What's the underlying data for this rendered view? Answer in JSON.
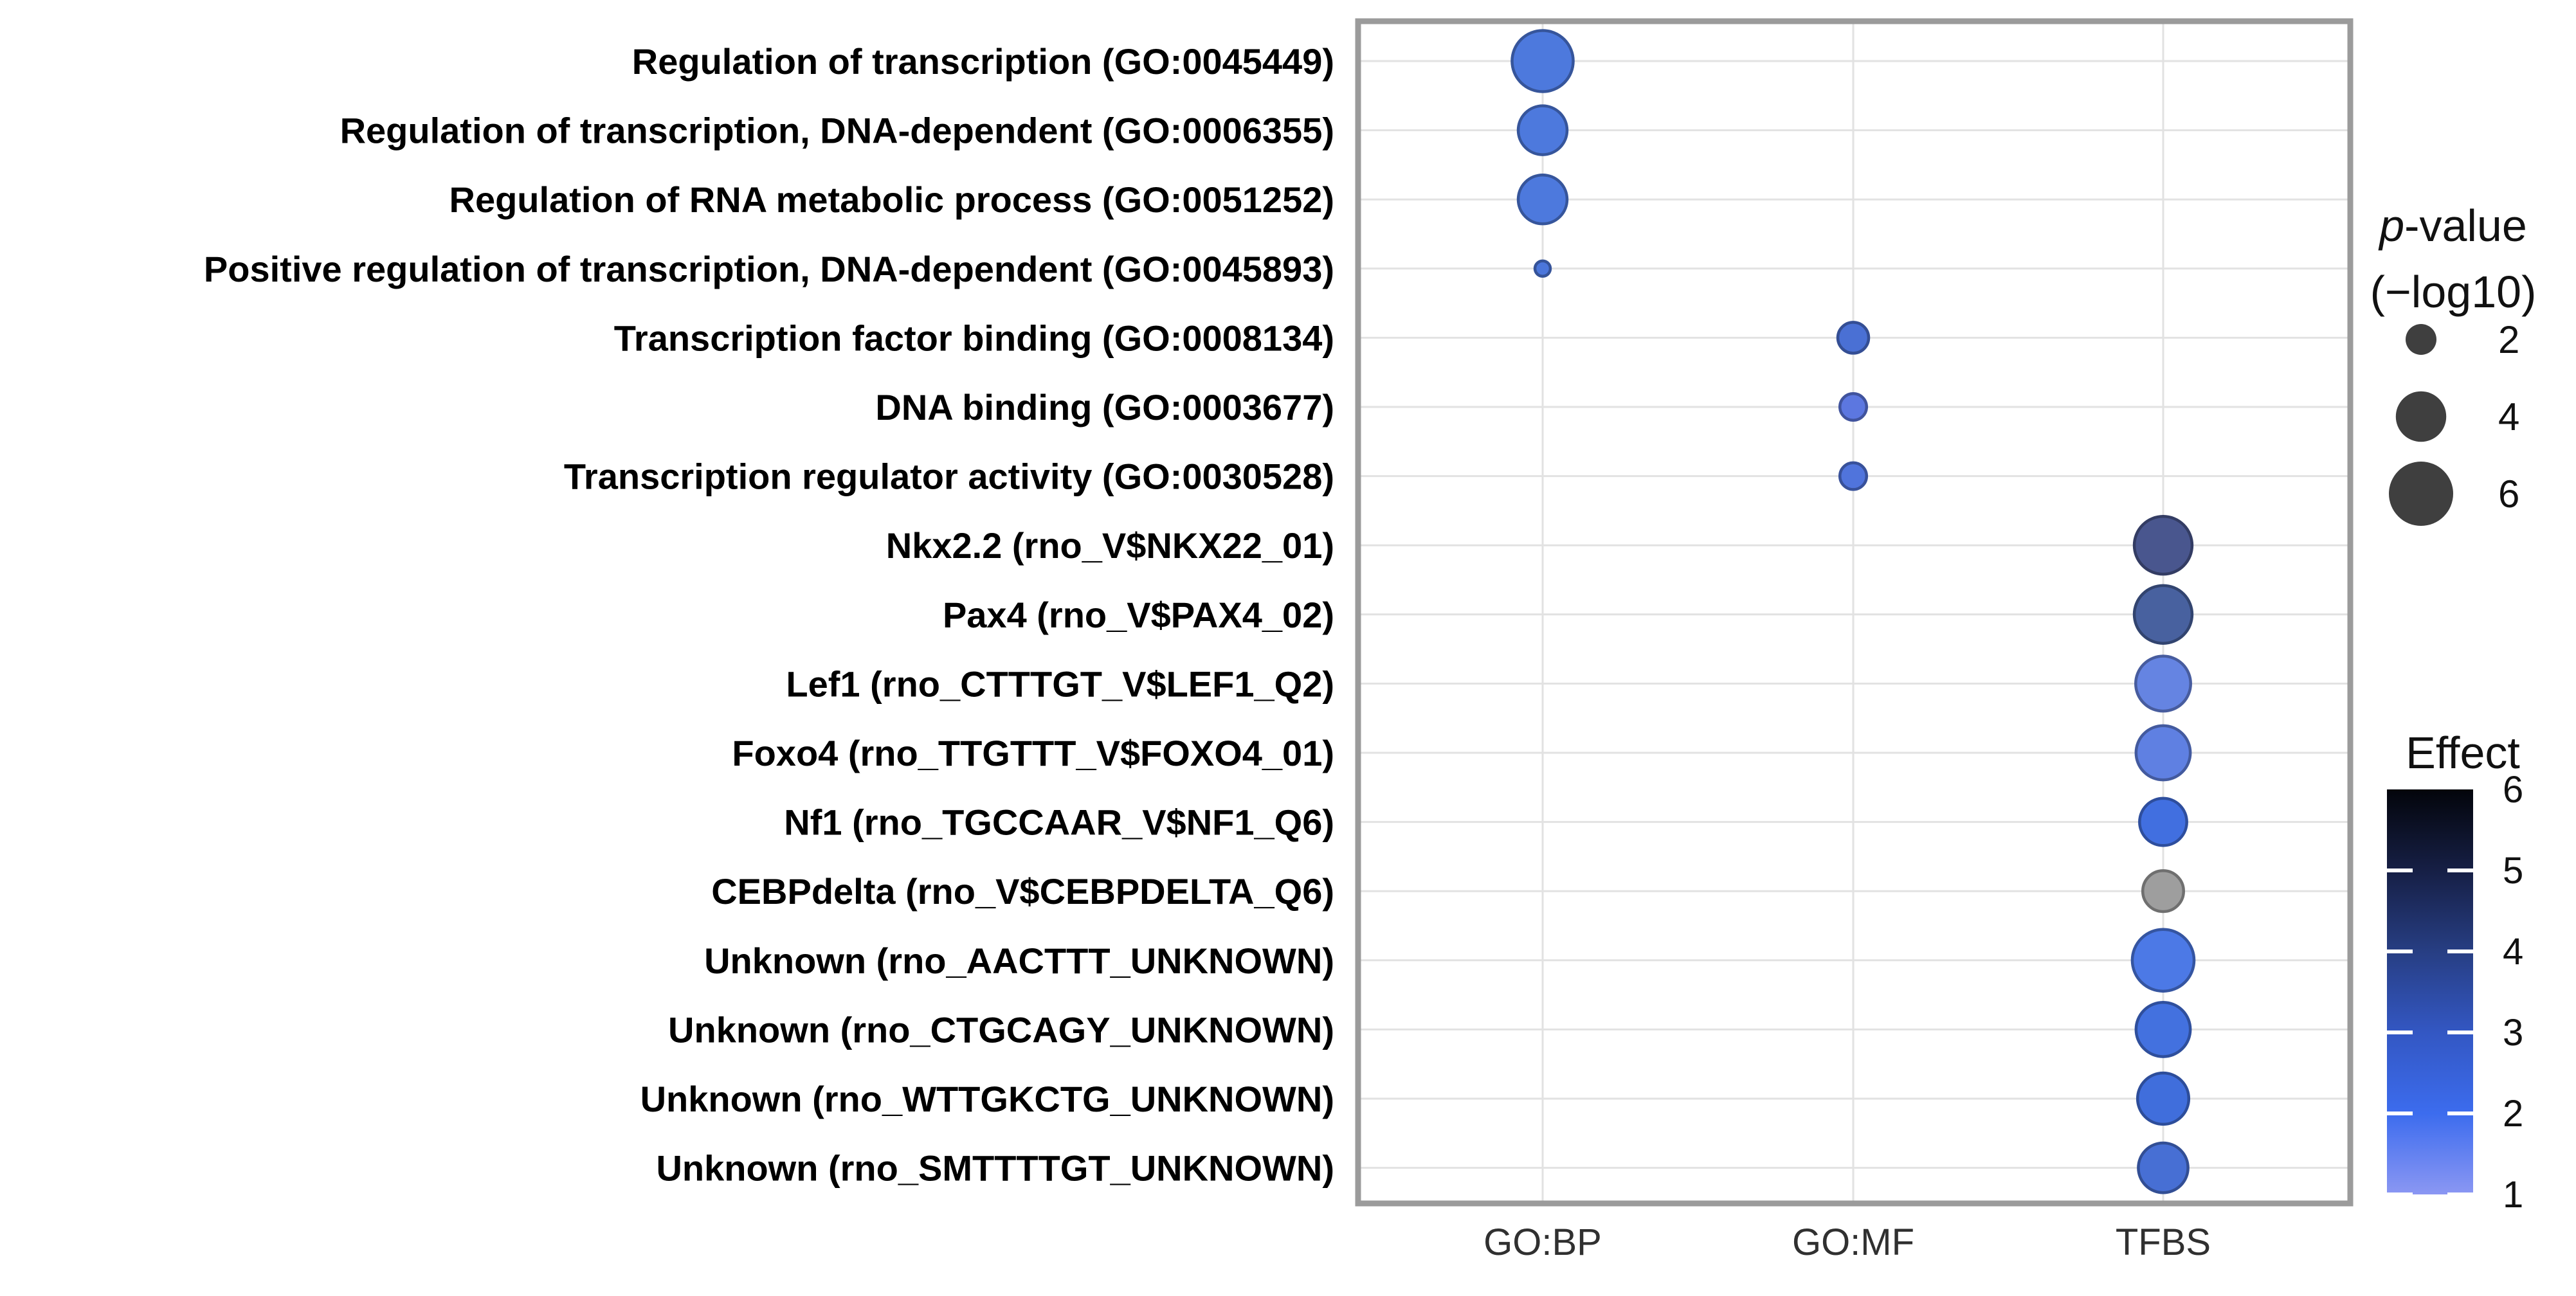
{
  "figure": {
    "background": "#ffffff",
    "panel_border_color": "#9b9b9b",
    "grid_color": "#e2e2e2",
    "axis_text_color": "#303030"
  },
  "chart_data": {
    "type": "scatter",
    "subtype": "bubble-dot-plot",
    "x_categories": [
      "GO:BP",
      "GO:MF",
      "TFBS"
    ],
    "grid": true,
    "rows": [
      {
        "label": "Regulation of transcription (GO:0045449)",
        "category": "GO:BP",
        "p_log10": 5.5,
        "effect": 2.3,
        "color": "#4d79dd"
      },
      {
        "label": "Regulation of transcription, DNA-dependent (GO:0006355)",
        "category": "GO:BP",
        "p_log10": 3.8,
        "effect": 2.3,
        "color": "#4d79dd"
      },
      {
        "label": "Regulation of RNA metabolic process (GO:0051252)",
        "category": "GO:BP",
        "p_log10": 3.8,
        "effect": 2.3,
        "color": "#4d79dd"
      },
      {
        "label": "Positive regulation of transcription, DNA-dependent (GO:0045893)",
        "category": "GO:BP",
        "p_log10": 1.1,
        "effect": 2.3,
        "color": "#4b76db"
      },
      {
        "label": "Transcription factor binding (GO:0008134)",
        "category": "GO:MF",
        "p_log10": 2.0,
        "effect": 2.5,
        "color": "#4a70d4"
      },
      {
        "label": "DNA binding (GO:0003677)",
        "category": "GO:MF",
        "p_log10": 1.7,
        "effect": 2.0,
        "color": "#5c77e0"
      },
      {
        "label": "Transcription regulator activity (GO:0030528)",
        "category": "GO:MF",
        "p_log10": 1.7,
        "effect": 2.2,
        "color": "#5074dc"
      },
      {
        "label": "Nkx2.2 (rno_V$NKX22_01)",
        "category": "TFBS",
        "p_log10": 5.0,
        "effect": 4.8,
        "color": "#49568e"
      },
      {
        "label": "Pax4 (rno_V$PAX4_02)",
        "category": "TFBS",
        "p_log10": 5.0,
        "effect": 4.3,
        "color": "#48619f"
      },
      {
        "label": "Lef1 (rno_CTTTGT_V$LEF1_Q2)",
        "category": "TFBS",
        "p_log10": 4.6,
        "effect": 1.8,
        "color": "#6584e2"
      },
      {
        "label": "Foxo4 (rno_TTGTTT_V$FOXO4_01)",
        "category": "TFBS",
        "p_log10": 4.5,
        "effect": 1.9,
        "color": "#5f80e2"
      },
      {
        "label": "Nf1 (rno_TGCCAAR_V$NF1_Q6)",
        "category": "TFBS",
        "p_log10": 3.6,
        "effect": 2.6,
        "color": "#416fe0"
      },
      {
        "label": "CEBPdelta (rno_V$CEBPDELTA_Q6)",
        "category": "TFBS",
        "p_log10": 2.9,
        "effect": null,
        "color": "#9e9e9e"
      },
      {
        "label": "Unknown (rno_AACTTT_UNKNOWN)",
        "category": "TFBS",
        "p_log10": 5.6,
        "effect": 2.2,
        "color": "#4c79e6"
      },
      {
        "label": "Unknown (rno_CTGCAGY_UNKNOWN)",
        "category": "TFBS",
        "p_log10": 4.5,
        "effect": 2.5,
        "color": "#4371df"
      },
      {
        "label": "Unknown (rno_WTTGKCTG_UNKNOWN)",
        "category": "TFBS",
        "p_log10": 4.1,
        "effect": 2.6,
        "color": "#406edc"
      },
      {
        "label": "Unknown (rno_SMTTTTGT_UNKNOWN)",
        "category": "TFBS",
        "p_log10": 3.9,
        "effect": 2.5,
        "color": "#476fd4"
      }
    ],
    "legend_size": {
      "title_p": "p",
      "title_rest": "-value",
      "title_line2": "(−log10)",
      "values": [
        2,
        4,
        6
      ],
      "dot_color": "#3f3f3f"
    },
    "legend_color": {
      "title": "Effect",
      "ticks": [
        6,
        5,
        4,
        3,
        2,
        1
      ],
      "range": [
        1,
        6
      ],
      "gradient": [
        {
          "v": 6,
          "hex": "#03050b"
        },
        {
          "v": 5,
          "hex": "#161f45"
        },
        {
          "v": 4,
          "hex": "#273e83"
        },
        {
          "v": 3,
          "hex": "#3357c3"
        },
        {
          "v": 2,
          "hex": "#3c6cee"
        },
        {
          "v": 1,
          "hex": "#8b97f3"
        }
      ],
      "na_color": "#9e9e9e"
    }
  }
}
